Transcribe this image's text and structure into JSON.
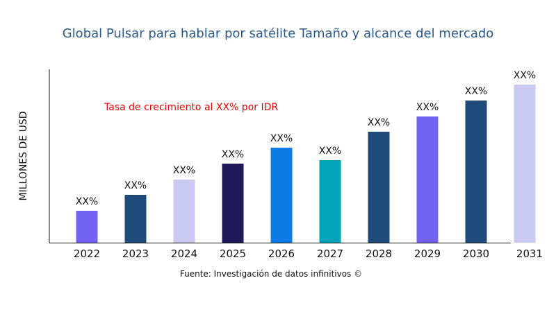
{
  "chart_data": {
    "type": "bar",
    "title": "Global Pulsar para hablar por satélite Tamaño y alcance del mercado",
    "ylabel": "MILLONES DE USD",
    "xlabel": "",
    "categories": [
      "2022",
      "2023",
      "2024",
      "2025",
      "2026",
      "2027",
      "2028",
      "2029",
      "2030",
      "2031"
    ],
    "values": [
      46,
      69,
      91,
      114,
      137,
      119,
      160,
      182,
      205,
      228
    ],
    "data_labels": [
      "XX%",
      "XX%",
      "XX%",
      "XX%",
      "XX%",
      "XX%",
      "XX%",
      "XX%",
      "XX%",
      "XX%"
    ],
    "colors": [
      "#7263f2",
      "#1f4b7b",
      "#c9c9f1",
      "#1e1858",
      "#0d7be6",
      "#00a3b8",
      "#1f4b7b",
      "#7263f2",
      "#1f4b7b",
      "#c9c9f1"
    ],
    "ylim": [
      0,
      250
    ],
    "grid": false,
    "annotation": "Tasa de crecimiento al XX% por IDR",
    "source": "Fuente: Investigación de datos infinitivos ©"
  }
}
